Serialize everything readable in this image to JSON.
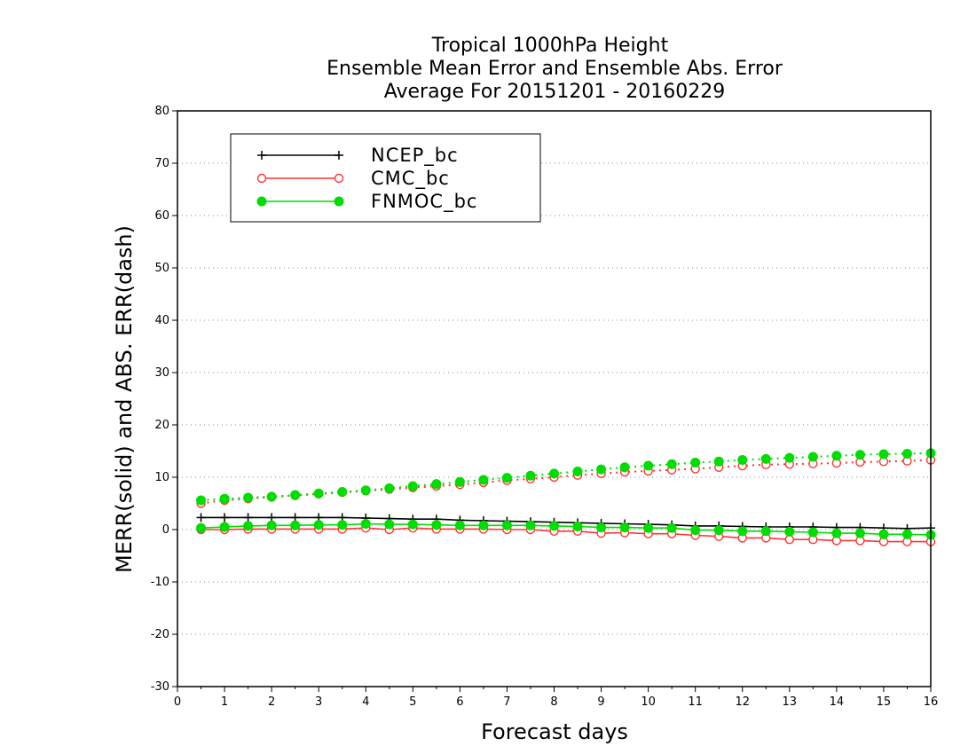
{
  "chart_data": {
    "type": "line",
    "title_lines": [
      "Tropical 1000hPa Height",
      "Ensemble Mean Error and Ensemble Abs. Error",
      "Average For 20151201 - 20160229"
    ],
    "xlabel": "Forecast days",
    "ylabel": "MERR(solid) and ABS. ERR(dash)",
    "xlim": [
      0,
      16
    ],
    "ylim": [
      -30,
      80
    ],
    "x_ticks": [
      "0",
      "1",
      "2",
      "3",
      "4",
      "5",
      "6",
      "7",
      "8",
      "9",
      "10",
      "11",
      "12",
      "13",
      "14",
      "15",
      "16"
    ],
    "y_ticks": [
      "-30",
      "-20",
      "-10",
      "0",
      "10",
      "20",
      "30",
      "40",
      "50",
      "60",
      "70",
      "80"
    ],
    "grid": "horizontal dotted",
    "legend_position": "top-left",
    "x": [
      0.5,
      1,
      1.5,
      2,
      2.5,
      3,
      3.5,
      4,
      4.5,
      5,
      5.5,
      6,
      6.5,
      7,
      7.5,
      8,
      8.5,
      9,
      9.5,
      10,
      10.5,
      11,
      11.5,
      12,
      12.5,
      13,
      13.5,
      14,
      14.5,
      15,
      15.5,
      16
    ],
    "series": [
      {
        "name": "NCEP_bc",
        "color": "#000000",
        "marker": "plus",
        "merr": [
          2.3,
          2.3,
          2.3,
          2.3,
          2.3,
          2.3,
          2.3,
          2.2,
          2.1,
          2.0,
          2.0,
          1.8,
          1.7,
          1.6,
          1.5,
          1.4,
          1.3,
          1.2,
          1.1,
          1.0,
          0.9,
          0.7,
          0.7,
          0.6,
          0.5,
          0.5,
          0.5,
          0.4,
          0.4,
          0.3,
          0.2,
          0.3
        ],
        "abs_err": null
      },
      {
        "name": "CMC_bc",
        "color": "#ff3333",
        "marker": "open-circle",
        "merr": [
          0.0,
          0.0,
          0.1,
          0.1,
          0.1,
          0.1,
          0.1,
          0.3,
          0.0,
          0.3,
          0.1,
          0.1,
          0.1,
          0.0,
          0.0,
          -0.3,
          -0.3,
          -0.7,
          -0.6,
          -0.8,
          -0.8,
          -1.1,
          -1.3,
          -1.6,
          -1.6,
          -1.9,
          -1.9,
          -2.1,
          -2.1,
          -2.3,
          -2.3,
          -2.3
        ],
        "abs_err": [
          5.0,
          5.6,
          5.9,
          6.2,
          6.5,
          6.8,
          7.1,
          7.4,
          7.7,
          8.0,
          8.3,
          8.6,
          9.0,
          9.4,
          9.7,
          10.0,
          10.4,
          10.7,
          11.0,
          11.2,
          11.4,
          11.6,
          11.9,
          12.2,
          12.4,
          12.5,
          12.6,
          12.7,
          12.9,
          13.0,
          13.1,
          13.3
        ]
      },
      {
        "name": "FNMOC_bc",
        "color": "#00dd00",
        "marker": "filled-circle",
        "merr": [
          0.3,
          0.5,
          0.7,
          0.8,
          0.8,
          0.9,
          0.9,
          1.1,
          1.0,
          1.0,
          0.9,
          0.8,
          0.8,
          0.8,
          0.8,
          0.7,
          0.6,
          0.4,
          0.4,
          0.3,
          0.3,
          -0.1,
          -0.1,
          -0.3,
          -0.3,
          -0.4,
          -0.5,
          -0.7,
          -0.7,
          -0.9,
          -0.9,
          -1.0
        ],
        "abs_err": [
          5.6,
          5.9,
          6.1,
          6.3,
          6.6,
          6.9,
          7.2,
          7.5,
          7.9,
          8.3,
          8.7,
          9.1,
          9.5,
          9.9,
          10.3,
          10.7,
          11.1,
          11.5,
          11.9,
          12.2,
          12.5,
          12.8,
          13.0,
          13.3,
          13.5,
          13.7,
          13.9,
          14.1,
          14.3,
          14.4,
          14.5,
          14.6
        ]
      }
    ]
  }
}
